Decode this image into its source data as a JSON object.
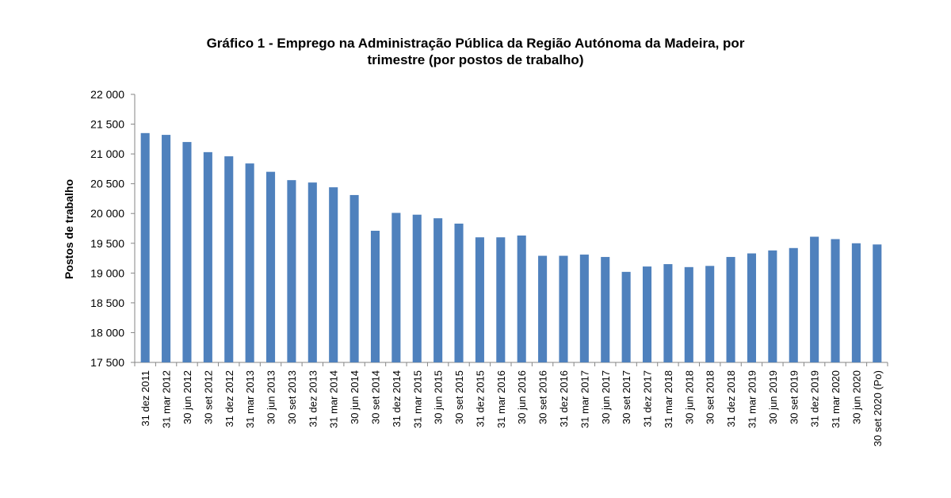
{
  "chart_data": {
    "type": "bar",
    "title": "Gráfico 1 - Emprego na Administração Pública da Região Autónoma da Madeira, por",
    "subtitle": "trimestre (por postos de trabalho)",
    "ylabel": "Postos de trabalho",
    "xlabel": "",
    "ylim": [
      17500,
      22000
    ],
    "yticks": [
      17500,
      18000,
      18500,
      19000,
      19500,
      20000,
      20500,
      21000,
      21500,
      22000
    ],
    "ytick_labels": [
      "17 500",
      "18 000",
      "18 500",
      "19 000",
      "19 500",
      "20 000",
      "20 500",
      "21 000",
      "21 500",
      "22 000"
    ],
    "grid": false,
    "legend": "none",
    "bar_color": "#4F81BD",
    "categories": [
      "31 dez 2011",
      "31 mar 2012",
      "30 jun 2012",
      "30 set 2012",
      "31 dez 2012",
      "31 mar 2013",
      "30 jun 2013",
      "30 set 2013",
      "31 dez 2013",
      "31 mar 2014",
      "30 jun 2014",
      "30 set 2014",
      "31 dez 2014",
      "31 mar 2015",
      "30 jun 2015",
      "30 set 2015",
      "31 dez 2015",
      "31 mar 2016",
      "30 jun 2016",
      "30 set 2016",
      "31 dez 2016",
      "31 mar 2017",
      "30 jun 2017",
      "30 set 2017",
      "31 dez 2017",
      "31 mar 2018",
      "30 jun 2018",
      "30 set 2018",
      "31 dez 2018",
      "31 mar 2019",
      "30 jun 2019",
      "30 set 2019",
      "31 dez 2019",
      "31 mar 2020",
      "30 jun 2020",
      "30 set 2020 (Po)"
    ],
    "values": [
      21350,
      21320,
      21200,
      21030,
      20960,
      20840,
      20700,
      20560,
      20520,
      20440,
      20310,
      19710,
      20010,
      19980,
      19920,
      19830,
      19600,
      19600,
      19630,
      19290,
      19290,
      19310,
      19270,
      19020,
      19110,
      19150,
      19100,
      19120,
      19270,
      19330,
      19380,
      19420,
      19610,
      19570,
      19500,
      19480
    ]
  }
}
